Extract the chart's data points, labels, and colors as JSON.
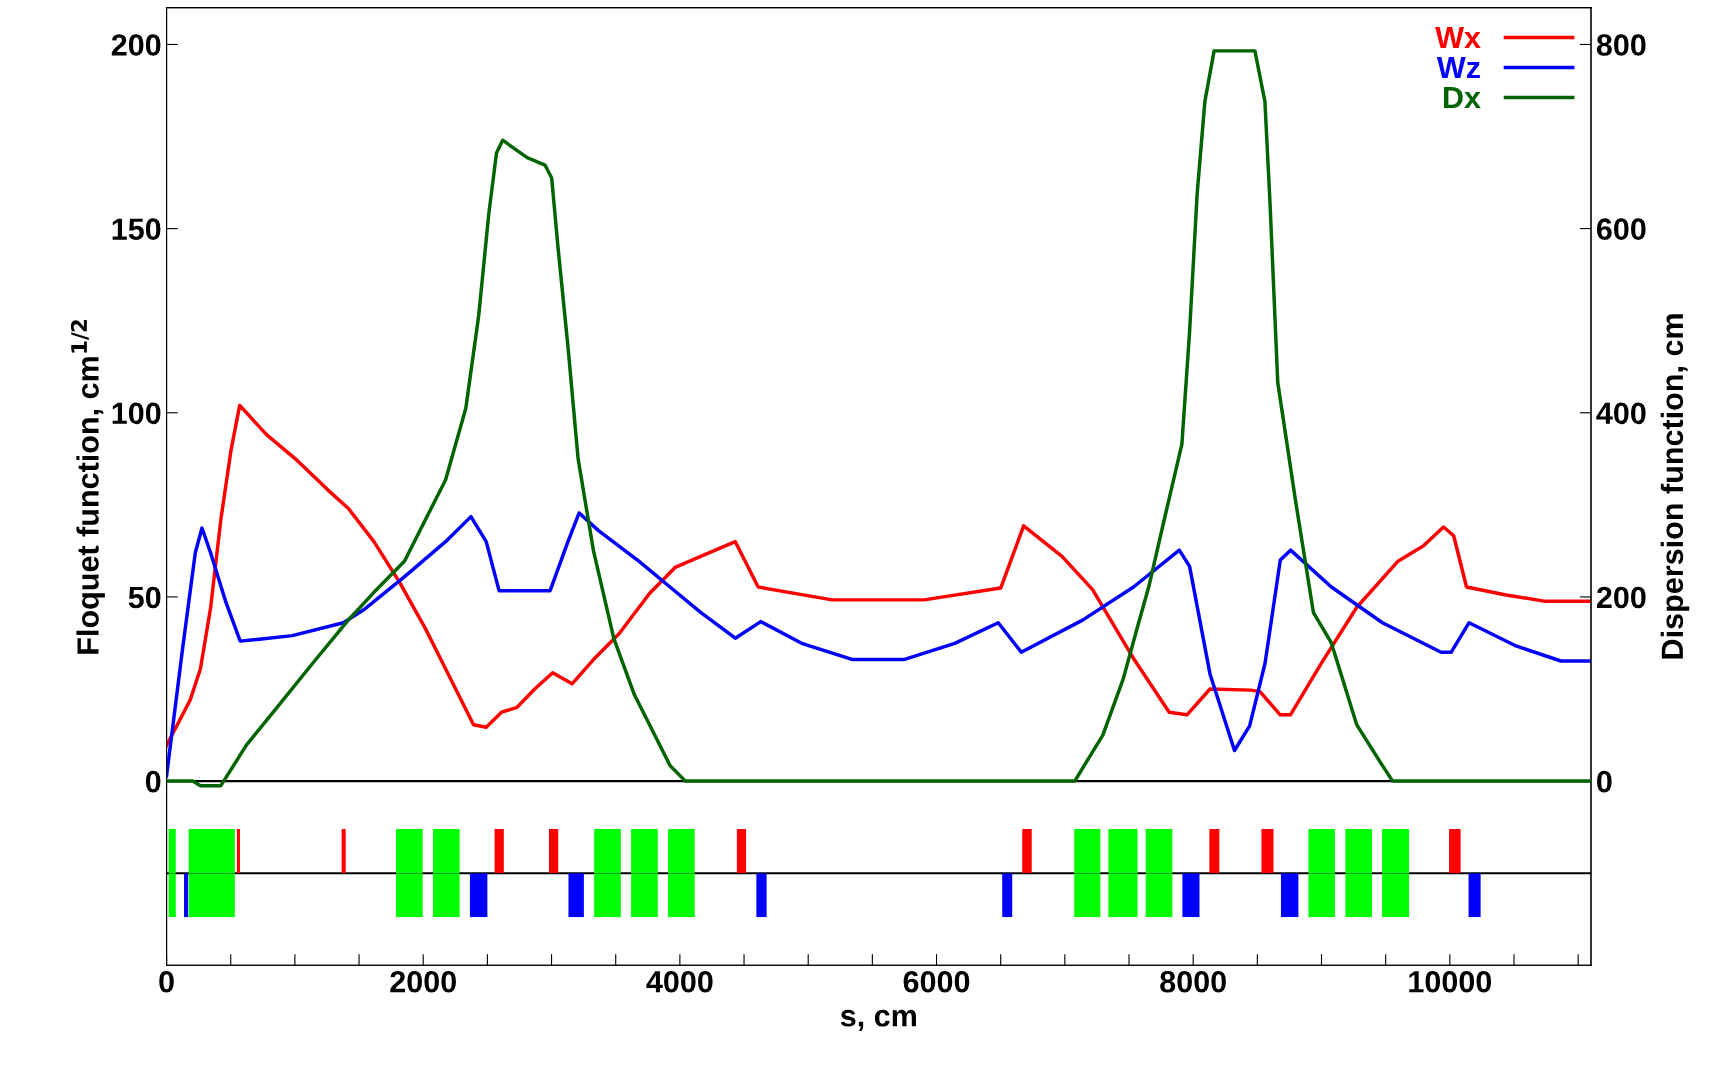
{
  "chart_data": [
    {
      "type": "line",
      "xlabel": "s, cm",
      "ylabel": "Floquet function, cm$^{1/2}$",
      "y2label": "Dispersion function, cm",
      "xlim": [
        0,
        11100
      ],
      "ylim": [
        -50,
        210
      ],
      "y2lim": [
        -200,
        840
      ],
      "xticks": [
        0,
        {
          "value": 500,
          "label": null
        },
        {
          "value": 1000,
          "label": null
        },
        {
          "value": 1500,
          "label": null
        },
        2000,
        {
          "value": 2500,
          "label": null
        },
        {
          "value": 3000,
          "label": null
        },
        {
          "value": 3500,
          "label": null
        },
        4000,
        {
          "value": 4500,
          "label": null
        },
        {
          "value": 5000,
          "label": null
        },
        {
          "value": 5500,
          "label": null
        },
        6000,
        {
          "value": 6500,
          "label": null
        },
        {
          "value": 7000,
          "label": null
        },
        {
          "value": 7500,
          "label": null
        },
        8000,
        {
          "value": 8500,
          "label": null
        },
        {
          "value": 9000,
          "label": null
        },
        {
          "value": 9500,
          "label": null
        },
        10000,
        {
          "value": 10500,
          "label": null
        },
        {
          "value": 11000,
          "label": null
        }
      ],
      "yticks": [
        0,
        50,
        100,
        150,
        200
      ],
      "y2ticks": [
        0,
        200,
        400,
        600,
        800
      ],
      "legend": "top right",
      "marker": "none",
      "line_style": "solid",
      "ref_lines": [
        {
          "axis": "y",
          "value": 0,
          "color": "#000000"
        },
        {
          "axis": "y",
          "value": -25,
          "color": "#000000"
        }
      ],
      "series": [
        {
          "name": "Wx",
          "color": "#ff0000",
          "x": [
            0,
            184,
            264,
            343,
            423,
            503,
            570,
            781,
            1020,
            1258,
            1417,
            1616,
            1815,
            2014,
            2174,
            2392,
            2491,
            2610,
            2730,
            2869,
            3009,
            3160,
            3327,
            3526,
            3765,
            3963,
            4162,
            4432,
            4610,
            5187,
            5903,
            6500,
            6679,
            6978,
            7216,
            7535,
            7813,
            7952,
            8131,
            8450,
            8520,
            8678,
            8758,
            8997,
            9275,
            9593,
            9792,
            9951,
            10030,
            10130,
            10429,
            10745,
            11091
          ],
          "values": [
            9.7,
            22,
            30.5,
            47,
            71,
            90,
            102,
            94,
            87,
            79,
            74,
            65,
            54,
            41.6,
            30.5,
            15.3,
            14.6,
            18.7,
            20,
            25,
            29.4,
            26.4,
            33,
            40,
            51,
            58,
            61,
            65,
            52.7,
            49.2,
            49.2,
            52.4,
            69.3,
            61,
            52,
            33.3,
            18.7,
            18,
            25,
            24.7,
            24.3,
            18,
            18,
            31.9,
            47.2,
            59.6,
            63.8,
            69,
            66.6,
            52.7,
            50.6,
            48.8,
            48.8
          ]
        },
        {
          "name": "Wz",
          "color": "#0000ff",
          "x": [
            0,
            125,
            224,
            276,
            343,
            463,
            574,
            741,
            980,
            1378,
            1536,
            1855,
            2174,
            2372,
            2491,
            2591,
            2989,
            3128,
            3215,
            3366,
            3685,
            3923,
            4162,
            4432,
            4630,
            4949,
            5347,
            5745,
            6142,
            6481,
            6660,
            7138,
            7535,
            7892,
            7972,
            8131,
            8322,
            8440,
            8560,
            8679,
            8759,
            9077,
            9475,
            9932,
            10011,
            10150,
            10508,
            10866,
            11091
          ],
          "values": [
            1.4,
            36,
            62,
            68.7,
            62,
            48.5,
            38,
            38.6,
            39.5,
            43,
            46.5,
            55.5,
            65,
            71.8,
            65,
            51.7,
            51.7,
            65,
            72.8,
            68,
            59.6,
            52.7,
            45.8,
            38.8,
            43.3,
            37.4,
            33,
            33,
            37.4,
            43,
            35,
            43.7,
            52.7,
            62.7,
            58.3,
            29.1,
            8.3,
            15,
            32,
            60,
            62.7,
            52.7,
            43,
            35,
            35,
            43,
            36.8,
            32.6,
            32.6
          ]
        },
        {
          "name": "Dx",
          "color": "#006400",
          "axis": "y2",
          "x": [
            0,
            205,
            264,
            423,
            622,
            861,
            1139,
            1417,
            1616,
            1855,
            2014,
            2174,
            2332,
            2432,
            2511,
            2571,
            2619,
            2810,
            2949,
            3001,
            3048,
            3128,
            3207,
            3327,
            3485,
            3645,
            3804,
            3923,
            4043,
            7077,
            7296,
            7455,
            7575,
            7654,
            7773,
            7912,
            7972,
            8031,
            8091,
            8163,
            8481,
            8559,
            8599,
            8659,
            8797,
            8937,
            9077,
            9275,
            9474,
            9554,
            11091
          ],
          "values": [
            0,
            0,
            -5,
            -5,
            39,
            80,
            128,
            175,
            205,
            239,
            283,
            327,
            405,
            505,
            616,
            682,
            696,
            677,
            669,
            655,
            583,
            472,
            350,
            250,
            155,
            94,
            50,
            17,
            0,
            0,
            50,
            111,
            172,
            211,
            283,
            366,
            488,
            638,
            738,
            793,
            793,
            738,
            627,
            433,
            305,
            183,
            150,
            61,
            17,
            0,
            0
          ]
        }
      ]
    },
    {
      "type": "bar",
      "orientation": "horizontal",
      "categories": [
        null
      ],
      "xlim": [
        0,
        11100
      ],
      "tick_labels": false,
      "series": [
        {
          "color": "#00ff00",
          "base": [
            16
          ],
          "values": [
            56
          ]
        },
        {
          "color": "#00ff00",
          "base": [
            172
          ],
          "values": [
            360
          ]
        },
        {
          "color": "#00ff00",
          "base": [
            1788
          ],
          "values": [
            208
          ]
        },
        {
          "color": "#00ff00",
          "base": [
            2076
          ],
          "values": [
            208
          ]
        },
        {
          "color": "#00ff00",
          "base": [
            3332
          ],
          "values": [
            208
          ]
        },
        {
          "color": "#00ff00",
          "base": [
            3620
          ],
          "values": [
            208
          ]
        },
        {
          "color": "#00ff00",
          "base": [
            3908
          ],
          "values": [
            208
          ]
        },
        {
          "color": "#00ff00",
          "base": [
            7073
          ],
          "values": [
            204
          ]
        },
        {
          "color": "#00ff00",
          "base": [
            7339
          ],
          "values": [
            227
          ]
        },
        {
          "color": "#00ff00",
          "base": [
            7630
          ],
          "values": [
            208
          ]
        },
        {
          "color": "#00ff00",
          "base": [
            8898
          ],
          "values": [
            207
          ]
        },
        {
          "color": "#00ff00",
          "base": [
            9186
          ],
          "values": [
            208
          ]
        },
        {
          "color": "#00ff00",
          "base": [
            9472
          ],
          "values": [
            210
          ]
        },
        {
          "color": "#ff0000",
          "base": [
            548
          ],
          "values": [
            24
          ]
        },
        {
          "color": "#ff0000",
          "base": [
            1364
          ],
          "values": [
            32
          ]
        },
        {
          "color": "#ff0000",
          "base": [
            2556
          ],
          "values": [
            72
          ]
        },
        {
          "color": "#ff0000",
          "base": [
            2980
          ],
          "values": [
            72
          ]
        },
        {
          "color": "#ff0000",
          "base": [
            4444
          ],
          "values": [
            72
          ]
        },
        {
          "color": "#ff0000",
          "base": [
            6668
          ],
          "values": [
            74
          ]
        },
        {
          "color": "#ff0000",
          "base": [
            8126
          ],
          "values": [
            78
          ]
        },
        {
          "color": "#ff0000",
          "base": [
            8532
          ],
          "values": [
            94
          ]
        },
        {
          "color": "#ff0000",
          "base": [
            9994
          ],
          "values": [
            90
          ]
        }
      ]
    },
    {
      "type": "bar",
      "orientation": "horizontal",
      "categories": [
        null
      ],
      "xlim": [
        0,
        11100
      ],
      "tick_labels": false,
      "series": [
        {
          "color": "#00ff00",
          "base": [
            16
          ],
          "values": [
            56
          ]
        },
        {
          "color": "#00ff00",
          "base": [
            172
          ],
          "values": [
            360
          ]
        },
        {
          "color": "#00ff00",
          "base": [
            1788
          ],
          "values": [
            208
          ]
        },
        {
          "color": "#00ff00",
          "base": [
            2076
          ],
          "values": [
            208
          ]
        },
        {
          "color": "#00ff00",
          "base": [
            3332
          ],
          "values": [
            208
          ]
        },
        {
          "color": "#00ff00",
          "base": [
            3620
          ],
          "values": [
            208
          ]
        },
        {
          "color": "#00ff00",
          "base": [
            3908
          ],
          "values": [
            208
          ]
        },
        {
          "color": "#00ff00",
          "base": [
            7073
          ],
          "values": [
            204
          ]
        },
        {
          "color": "#00ff00",
          "base": [
            7339
          ],
          "values": [
            227
          ]
        },
        {
          "color": "#00ff00",
          "base": [
            7630
          ],
          "values": [
            208
          ]
        },
        {
          "color": "#00ff00",
          "base": [
            8898
          ],
          "values": [
            207
          ]
        },
        {
          "color": "#00ff00",
          "base": [
            9186
          ],
          "values": [
            208
          ]
        },
        {
          "color": "#00ff00",
          "base": [
            9472
          ],
          "values": [
            210
          ]
        },
        {
          "color": "#0000ff",
          "base": [
            136
          ],
          "values": [
            32
          ]
        },
        {
          "color": "#0000ff",
          "base": [
            2364
          ],
          "values": [
            136
          ]
        },
        {
          "color": "#0000ff",
          "base": [
            3132
          ],
          "values": [
            120
          ]
        },
        {
          "color": "#0000ff",
          "base": [
            4596
          ],
          "values": [
            80
          ]
        },
        {
          "color": "#0000ff",
          "base": [
            6512
          ],
          "values": [
            78
          ]
        },
        {
          "color": "#0000ff",
          "base": [
            7916
          ],
          "values": [
            133
          ]
        },
        {
          "color": "#0000ff",
          "base": [
            8684
          ],
          "values": [
            136
          ]
        },
        {
          "color": "#0000ff",
          "base": [
            10146
          ],
          "values": [
            94
          ]
        }
      ]
    }
  ]
}
